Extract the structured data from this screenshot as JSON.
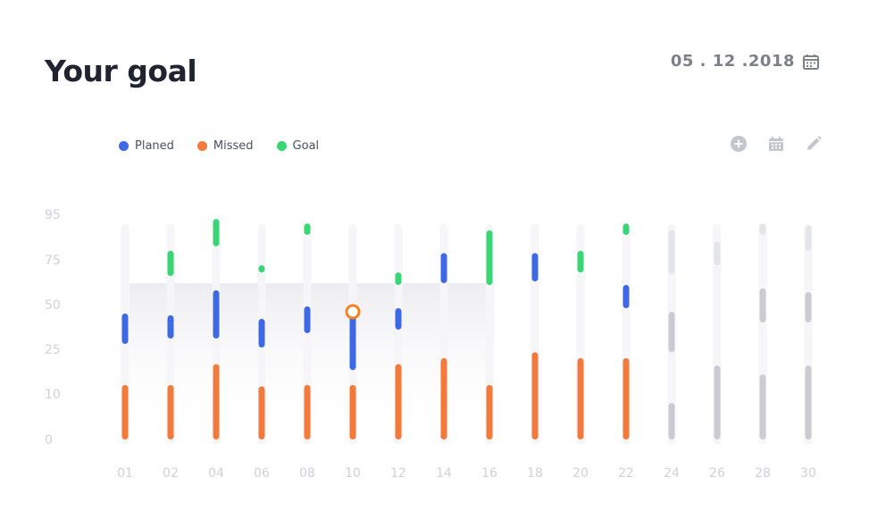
{
  "header": {
    "title": "Your goal",
    "date": "05 . 12 .2018"
  },
  "icons": {
    "calendar": "calendar-icon",
    "add": "plus-circle-icon",
    "schedule": "calendar-grid-icon",
    "edit": "pencil-icon"
  },
  "colors": {
    "planed": "#3d68e6",
    "missed": "#f47a3b",
    "goal": "#38d675",
    "future_dark": "#cbcbd1",
    "future_light": "#e4e5e9",
    "track": "#f6f6f8"
  },
  "chart_data": {
    "type": "bar",
    "title": "",
    "legend": [
      {
        "name": "Planed",
        "color": "#3d68e6"
      },
      {
        "name": "Missed",
        "color": "#f47a3b"
      },
      {
        "name": "Goal",
        "color": "#38d675"
      }
    ],
    "y_ticks": [
      "95",
      "75",
      "50",
      "25",
      "10",
      "0"
    ],
    "categories": [
      "01",
      "02",
      "04",
      "06",
      "08",
      "10",
      "12",
      "14",
      "16",
      "18",
      "20",
      "22",
      "24",
      "26",
      "28",
      "30"
    ],
    "series": [
      {
        "name": "Missed",
        "ranges": [
          [
            0,
            13
          ],
          [
            0,
            13
          ],
          [
            0,
            20
          ],
          [
            0,
            12.5
          ],
          [
            0,
            13
          ],
          [
            0,
            13
          ],
          [
            0,
            20
          ],
          [
            0,
            22
          ],
          [
            0,
            13
          ],
          [
            0,
            24
          ],
          [
            0,
            22
          ],
          [
            0,
            22
          ],
          [
            0,
            8
          ],
          [
            0,
            19.5
          ],
          [
            0,
            16.5
          ],
          [
            0,
            19.5
          ]
        ]
      },
      {
        "name": "Planed",
        "ranges": [
          [
            28,
            45
          ],
          [
            31,
            44
          ],
          [
            31,
            58
          ],
          [
            26,
            42
          ],
          [
            34,
            49
          ],
          [
            18,
            46
          ],
          [
            36,
            48
          ],
          [
            62,
            78
          ],
          [
            null,
            null
          ],
          [
            63,
            78
          ],
          [
            null,
            null
          ],
          [
            48,
            61
          ],
          [
            24,
            46
          ],
          [
            null,
            null
          ],
          [
            40,
            59
          ],
          [
            40,
            57
          ]
        ]
      },
      {
        "name": "Goal",
        "ranges": [
          [
            null,
            null
          ],
          [
            66,
            79
          ],
          [
            81,
            93
          ],
          [
            68,
            72
          ],
          [
            86,
            91
          ],
          [
            null,
            null
          ],
          [
            61,
            68
          ],
          [
            null,
            null
          ],
          [
            61,
            88
          ],
          [
            null,
            null
          ],
          [
            68,
            79
          ],
          [
            86,
            91
          ],
          [
            67,
            88
          ],
          [
            72,
            83
          ],
          [
            86,
            91
          ],
          [
            79,
            90
          ]
        ]
      }
    ],
    "future_from_index": 12,
    "highlight_point": {
      "category": "10",
      "value": 46
    },
    "highlight_range": {
      "from": "01",
      "to": "16",
      "value": 62
    }
  }
}
